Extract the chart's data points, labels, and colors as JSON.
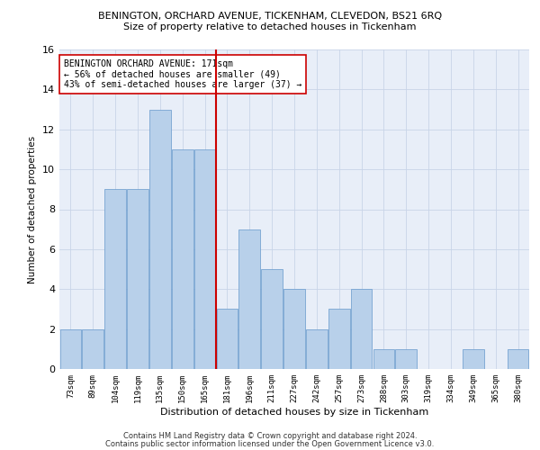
{
  "title": "BENINGTON, ORCHARD AVENUE, TICKENHAM, CLEVEDON, BS21 6RQ",
  "subtitle": "Size of property relative to detached houses in Tickenham",
  "xlabel": "Distribution of detached houses by size in Tickenham",
  "ylabel": "Number of detached properties",
  "bar_labels": [
    "73sqm",
    "89sqm",
    "104sqm",
    "119sqm",
    "135sqm",
    "150sqm",
    "165sqm",
    "181sqm",
    "196sqm",
    "211sqm",
    "227sqm",
    "242sqm",
    "257sqm",
    "273sqm",
    "288sqm",
    "303sqm",
    "319sqm",
    "334sqm",
    "349sqm",
    "365sqm",
    "380sqm"
  ],
  "bar_values": [
    2,
    2,
    9,
    9,
    13,
    11,
    11,
    3,
    7,
    5,
    4,
    2,
    3,
    4,
    1,
    1,
    0,
    0,
    1,
    0,
    1
  ],
  "bar_color": "#b8d0ea",
  "bar_edge_color": "#6699cc",
  "vline_index": 7,
  "vline_color": "#cc0000",
  "annotation_text": "BENINGTON ORCHARD AVENUE: 171sqm\n← 56% of detached houses are smaller (49)\n43% of semi-detached houses are larger (37) →",
  "annotation_box_color": "#ffffff",
  "annotation_box_edge": "#cc0000",
  "grid_color": "#c8d4e8",
  "background_color": "#e8eef8",
  "footer1": "Contains HM Land Registry data © Crown copyright and database right 2024.",
  "footer2": "Contains public sector information licensed under the Open Government Licence v3.0.",
  "ylim": [
    0,
    16
  ],
  "yticks": [
    0,
    2,
    4,
    6,
    8,
    10,
    12,
    14,
    16
  ]
}
